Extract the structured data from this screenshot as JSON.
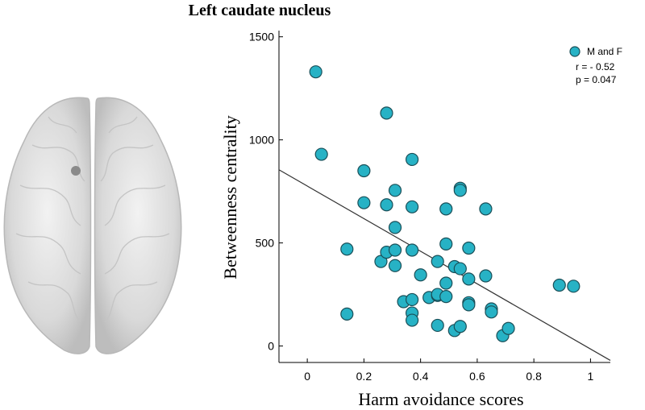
{
  "chart_data": {
    "type": "scatter",
    "title": "Left caudate nucleus",
    "xlabel": "Harm avoidance scores",
    "ylabel": "Betweenness  centrality",
    "xlim": [
      -0.1,
      1.07
    ],
    "ylim": [
      -80,
      1530
    ],
    "x_ticks": [
      0,
      0.2,
      0.4,
      0.6,
      0.8,
      1
    ],
    "x_tick_labels": [
      "0",
      "0.2",
      "0.4",
      "0.6",
      "0.8",
      "1"
    ],
    "y_ticks": [
      0,
      500,
      1000,
      1500
    ],
    "y_tick_labels": [
      "0",
      "500",
      "1000",
      "1500"
    ],
    "series": [
      {
        "name": "M and F",
        "color": "#27b2c5",
        "points": [
          [
            0.03,
            1330
          ],
          [
            0.05,
            930
          ],
          [
            0.14,
            470
          ],
          [
            0.14,
            155
          ],
          [
            0.2,
            850
          ],
          [
            0.2,
            695
          ],
          [
            0.26,
            410
          ],
          [
            0.28,
            455
          ],
          [
            0.28,
            685
          ],
          [
            0.28,
            1130
          ],
          [
            0.31,
            755
          ],
          [
            0.31,
            575
          ],
          [
            0.31,
            465
          ],
          [
            0.31,
            390
          ],
          [
            0.34,
            215
          ],
          [
            0.37,
            905
          ],
          [
            0.37,
            675
          ],
          [
            0.37,
            465
          ],
          [
            0.37,
            225
          ],
          [
            0.37,
            160
          ],
          [
            0.37,
            125
          ],
          [
            0.4,
            345
          ],
          [
            0.43,
            235
          ],
          [
            0.46,
            410
          ],
          [
            0.46,
            245
          ],
          [
            0.46,
            250
          ],
          [
            0.46,
            100
          ],
          [
            0.49,
            665
          ],
          [
            0.49,
            495
          ],
          [
            0.49,
            305
          ],
          [
            0.49,
            240
          ],
          [
            0.52,
            385
          ],
          [
            0.52,
            75
          ],
          [
            0.54,
            765
          ],
          [
            0.54,
            755
          ],
          [
            0.54,
            375
          ],
          [
            0.54,
            95
          ],
          [
            0.57,
            475
          ],
          [
            0.57,
            325
          ],
          [
            0.57,
            210
          ],
          [
            0.57,
            200
          ],
          [
            0.63,
            665
          ],
          [
            0.63,
            340
          ],
          [
            0.65,
            180
          ],
          [
            0.65,
            165
          ],
          [
            0.69,
            50
          ],
          [
            0.71,
            85
          ],
          [
            0.89,
            295
          ],
          [
            0.94,
            290
          ]
        ]
      }
    ],
    "fit_line": {
      "x": [
        -0.1,
        1.07
      ],
      "y": [
        855,
        -70
      ]
    },
    "annotations": [
      "r = - 0.52",
      "p = 0.047"
    ],
    "legend": {
      "placement": "top-right",
      "entries": [
        "M and F"
      ]
    },
    "grid": false
  },
  "brain_image": {
    "icon": "brain-axial-view-icon"
  }
}
